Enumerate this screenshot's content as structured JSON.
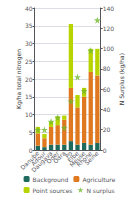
{
  "chart_data": {
    "type": "bar",
    "stacked": true,
    "categories": [
      "Danube",
      "Adour",
      "Daugava",
      "Oder",
      "Odra",
      "Po",
      "Elbe",
      "Meuse",
      "Rhone",
      "Seine"
    ],
    "series": [
      {
        "name": "Background",
        "color": "#1e6b5e",
        "values": [
          1.2,
          0.8,
          1.5,
          1.5,
          1.5,
          2.5,
          1.5,
          2.0,
          1.5,
          2.0
        ]
      },
      {
        "name": "Agriculture",
        "color": "#e07820",
        "values": [
          3.5,
          2.5,
          5.0,
          5.5,
          7.0,
          15.0,
          10.5,
          13.0,
          20.5,
          19.0
        ]
      },
      {
        "name": "Point sources",
        "color": "#b8d400",
        "values": [
          1.8,
          1.2,
          1.5,
          2.5,
          1.2,
          18.0,
          3.5,
          2.5,
          6.5,
          7.5
        ]
      },
      {
        "name": "N surplus",
        "type": "scatter",
        "marker": "star",
        "color": "#70b830",
        "axis": "y2",
        "values": [
          20,
          20,
          28,
          32,
          22,
          48,
          72,
          58,
          98,
          128
        ]
      }
    ],
    "ylabel": "Kg/ha total nitrogen",
    "y2label": "N Surplus (kg/ha)",
    "ylim": [
      0,
      40
    ],
    "yticks": [
      0,
      5,
      10,
      15,
      20,
      25,
      30,
      35,
      40
    ],
    "y2lim": [
      0,
      140
    ],
    "y2ticks": [
      0,
      20,
      40,
      60,
      80,
      100,
      120,
      140
    ],
    "grid": true,
    "legend": "bottom"
  }
}
